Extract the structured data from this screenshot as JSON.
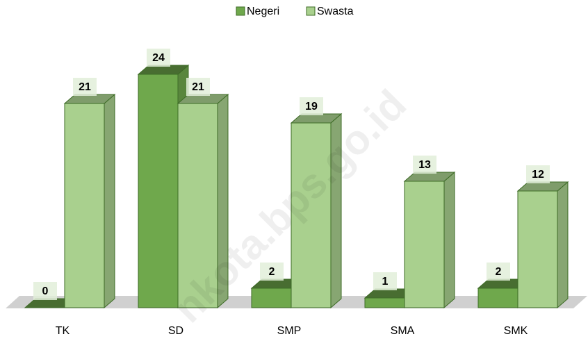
{
  "chart_data": {
    "type": "bar3d",
    "categories": [
      "TK",
      "SD",
      "SMP",
      "SMA",
      "SMK"
    ],
    "series": [
      {
        "name": "Negeri",
        "color": "#6fa84c",
        "values": [
          0,
          24,
          2,
          1,
          2
        ]
      },
      {
        "name": "Swasta",
        "color": "#a9d08e",
        "values": [
          21,
          21,
          19,
          13,
          12
        ]
      }
    ],
    "ylim": [
      0,
      24
    ],
    "legend": "top",
    "watermark": "nkota.bps.go.id"
  }
}
